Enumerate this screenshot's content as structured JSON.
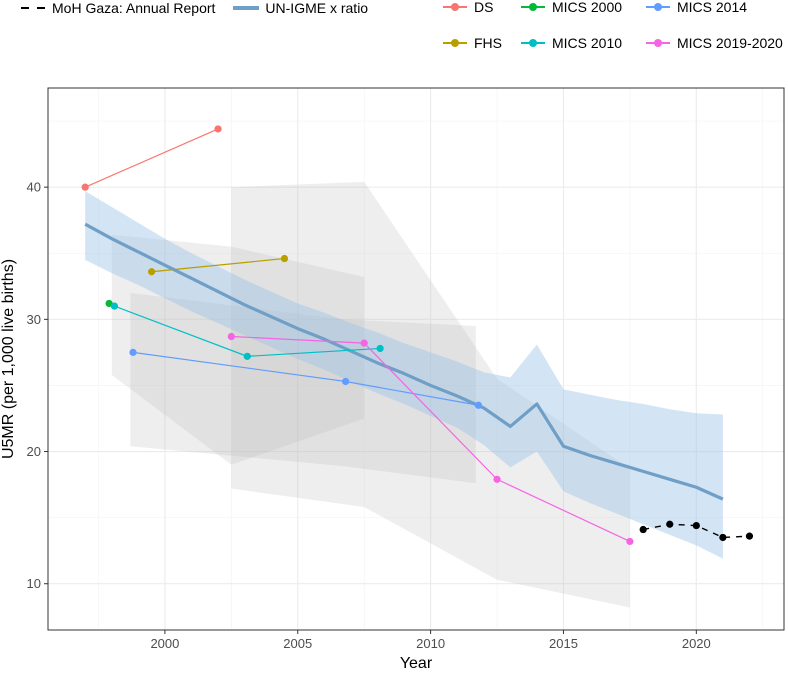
{
  "chart_data": {
    "type": "line",
    "title": "",
    "xlabel": "Year",
    "ylabel": "U5MR (per 1,000 live births)",
    "xlim": [
      1995.6,
      2023.3
    ],
    "ylim": [
      6.5,
      47.5
    ],
    "x_ticks": [
      2000,
      2005,
      2010,
      2015,
      2020
    ],
    "y_ticks": [
      10,
      20,
      30,
      40
    ],
    "grid": true,
    "legend": {
      "position": "top",
      "line_items": [
        {
          "name": "MoH Gaza: Annual Report",
          "style": "dashed",
          "color": "#000000"
        },
        {
          "name": "UN-IGME x ratio",
          "style": "thick",
          "color": "#6f9fc6"
        }
      ],
      "point_items": [
        {
          "name": "DS",
          "color": "#f8766d"
        },
        {
          "name": "MICS 2000",
          "color": "#00ba38"
        },
        {
          "name": "MICS 2014",
          "color": "#619cff"
        },
        {
          "name": "FHS",
          "color": "#b79f00"
        },
        {
          "name": "MICS 2010",
          "color": "#00bfc4"
        },
        {
          "name": "MICS 2019-2020",
          "color": "#f564e3"
        }
      ]
    },
    "uncertainty_bands": [
      {
        "name": "DS",
        "color": "#bdbdbd",
        "upper": [
          [
            1998,
            36.4
          ],
          [
            2002.5,
            35.5
          ],
          [
            2007.5,
            33.2
          ]
        ],
        "lower": [
          [
            2007.5,
            22.5
          ],
          [
            2002.5,
            19.0
          ],
          [
            1998,
            25.8
          ]
        ]
      },
      {
        "name": "MICS 2014",
        "color": "#bdbdbd",
        "upper": [
          [
            1998.7,
            32.0
          ],
          [
            2006.7,
            30.0
          ],
          [
            2011.7,
            29.5
          ]
        ],
        "lower": [
          [
            2011.7,
            17.6
          ],
          [
            2006.7,
            18.9
          ],
          [
            1998.7,
            20.4
          ]
        ]
      },
      {
        "name": "MICS 2019-2020",
        "color": "#bdbdbd",
        "upper": [
          [
            2002.5,
            40.0
          ],
          [
            2007.5,
            40.4
          ],
          [
            2012.5,
            25.5
          ],
          [
            2017.5,
            18.7
          ]
        ],
        "lower": [
          [
            2017.5,
            8.2
          ],
          [
            2012.5,
            10.3
          ],
          [
            2007.5,
            15.8
          ],
          [
            2002.5,
            17.2
          ]
        ]
      }
    ],
    "series": [
      {
        "name": "UN-IGME x ratio",
        "color": "#6f9fc6",
        "x": [
          1997,
          1998,
          1999,
          2000,
          2001,
          2002,
          2003,
          2004,
          2005,
          2006,
          2007,
          2008,
          2009,
          2010,
          2011,
          2012,
          2013,
          2014,
          2015,
          2016,
          2017,
          2018,
          2019,
          2020,
          2021
        ],
        "y": [
          37.2,
          36.1,
          35.1,
          34.1,
          33.1,
          32.1,
          31.1,
          30.2,
          29.3,
          28.5,
          27.6,
          26.7,
          25.9,
          25.0,
          24.2,
          23.3,
          21.9,
          23.6,
          20.4,
          19.7,
          19.1,
          18.5,
          17.9,
          17.3,
          16.4
        ],
        "lower": [
          34.5,
          33.5,
          32.6,
          31.6,
          30.6,
          29.7,
          28.8,
          27.9,
          27.0,
          26.2,
          25.3,
          24.4,
          23.6,
          22.7,
          21.8,
          20.5,
          18.8,
          20.0,
          17.0,
          16.1,
          15.3,
          14.5,
          13.7,
          12.9,
          11.9
        ],
        "upper": [
          39.7,
          38.5,
          37.3,
          36.1,
          35.0,
          34.0,
          33.0,
          32.1,
          31.2,
          30.5,
          29.7,
          29.0,
          28.2,
          27.5,
          26.8,
          26.0,
          25.6,
          28.1,
          24.7,
          24.3,
          23.9,
          23.6,
          23.2,
          22.9,
          22.8
        ]
      },
      {
        "name": "DS",
        "color": "#f8766d",
        "x": [
          1997,
          2002
        ],
        "y": [
          40.0,
          44.4
        ]
      },
      {
        "name": "FHS",
        "color": "#b79f00",
        "x": [
          1999.5,
          2004.5
        ],
        "y": [
          33.6,
          34.6
        ]
      },
      {
        "name": "MICS 2000",
        "color": "#00ba38",
        "x": [
          1997.9
        ],
        "y": [
          31.2
        ]
      },
      {
        "name": "MICS 2010",
        "color": "#00bfc4",
        "x": [
          1998.1,
          2003.1,
          2008.1
        ],
        "y": [
          31.0,
          27.2,
          27.8
        ]
      },
      {
        "name": "MICS 2014",
        "color": "#619cff",
        "x": [
          1998.8,
          2006.8,
          2011.8
        ],
        "y": [
          27.5,
          25.3,
          23.5
        ]
      },
      {
        "name": "MICS 2019-2020",
        "color": "#f564e3",
        "x": [
          2002.5,
          2007.5,
          2012.5,
          2017.5
        ],
        "y": [
          28.7,
          28.2,
          17.9,
          13.2
        ]
      },
      {
        "name": "MoH Gaza: Annual Report",
        "color": "#000000",
        "dashed": true,
        "x": [
          2018,
          2019,
          2020,
          2021,
          2022
        ],
        "y": [
          14.1,
          14.5,
          14.4,
          13.5,
          13.6
        ]
      }
    ]
  }
}
